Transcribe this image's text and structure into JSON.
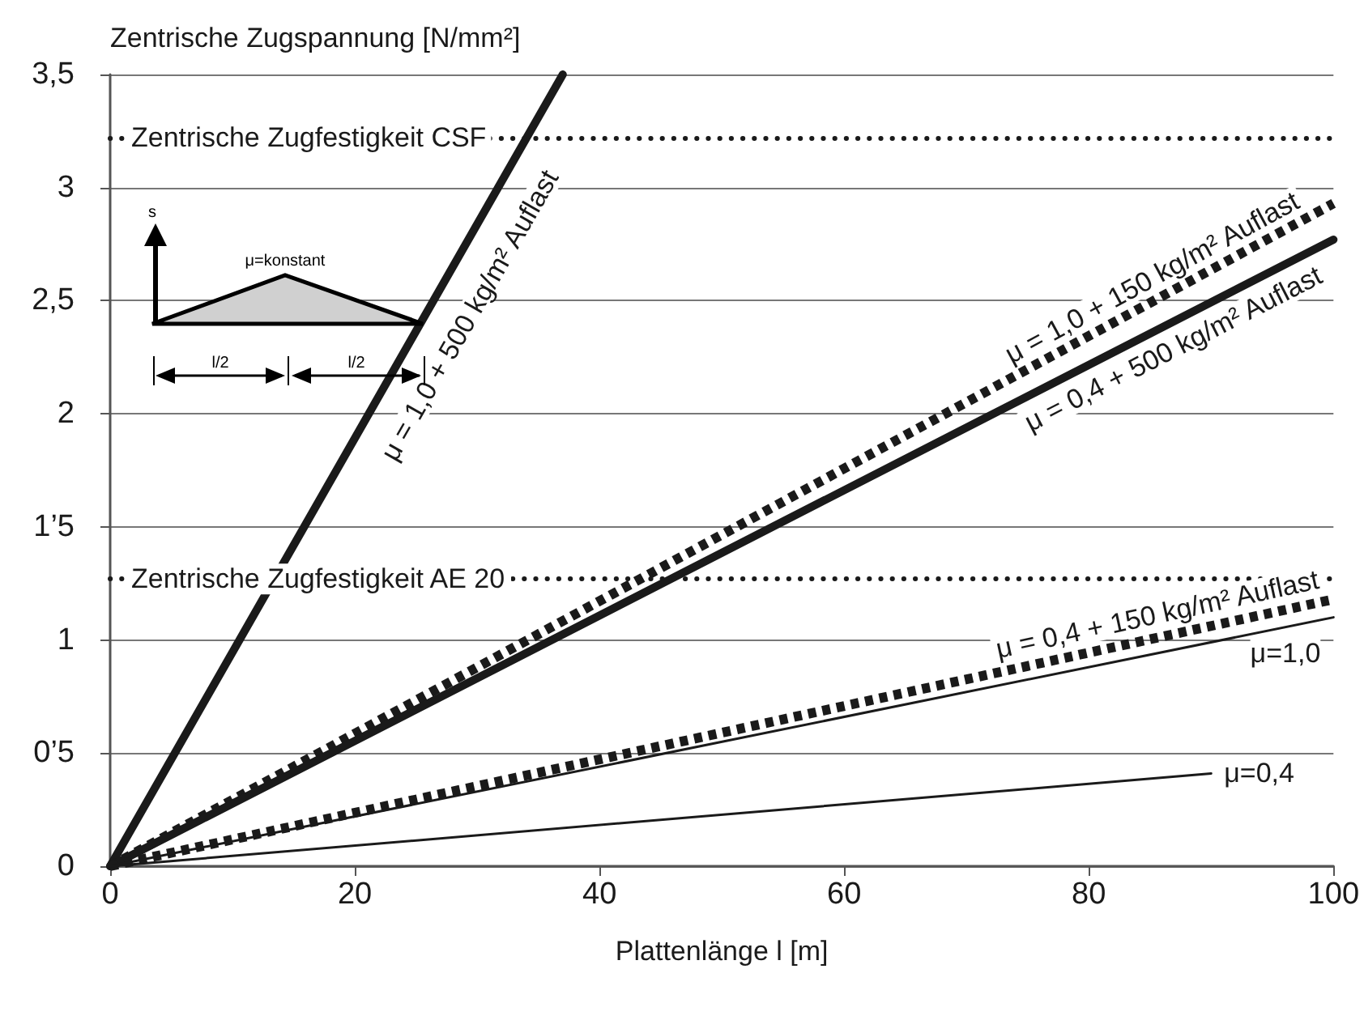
{
  "chart_data": {
    "type": "line",
    "ylabel": "Zentrische Zugspannung [N/mm²]",
    "xlabel": "Plattenlänge l [m]",
    "xlim": [
      0,
      100
    ],
    "xticks": [
      0,
      20,
      40,
      60,
      80,
      100
    ],
    "ylim": [
      0,
      3.5
    ],
    "yticks": [
      0,
      {
        "value": 0.5,
        "label": "0’5"
      },
      1,
      {
        "value": 1.5,
        "label": "1’5"
      },
      2,
      {
        "value": 2.5,
        "label": "2,5"
      },
      3,
      {
        "value": 3.5,
        "label": "3,5"
      }
    ],
    "grid": "y",
    "legend": false,
    "marker": "none",
    "series": [
      {
        "name": "μ = 1,0 + 500 kg/m² Auflast",
        "color": "#1a1a1a",
        "line_style": "solid",
        "x": [
          0,
          37
        ],
        "values": [
          0,
          3.5
        ]
      },
      {
        "name": "μ = 1,0 + 150 kg/m² Auflast",
        "color": "#1a1a1a",
        "line_style": "dotted",
        "x": [
          0,
          100
        ],
        "values": [
          0,
          2.93
        ]
      },
      {
        "name": "μ = 0,4 + 500 kg/m² Auflast",
        "color": "#1a1a1a",
        "line_style": "solid",
        "x": [
          0,
          100
        ],
        "values": [
          0,
          2.77
        ]
      },
      {
        "name": "μ = 0,4 + 150 kg/m² Auflast",
        "color": "#1a1a1a",
        "line_style": "dotted",
        "x": [
          0,
          100
        ],
        "values": [
          0,
          1.18
        ]
      },
      {
        "name": "μ=1,0",
        "color": "#1a1a1a",
        "line_style": "solid",
        "x": [
          0,
          100
        ],
        "values": [
          0,
          1.1
        ]
      },
      {
        "name": "μ=0,4",
        "color": "#1a1a1a",
        "line_style": "solid",
        "x": [
          0,
          90
        ],
        "values": [
          0,
          0.41
        ]
      }
    ],
    "ref_lines": [
      {
        "axis": "y",
        "value": 3.22,
        "label": "Zentrische Zugfestigkeit CSF",
        "color": "#1a1a1a",
        "line_style": "dotted"
      },
      {
        "axis": "y",
        "value": 1.27,
        "label": "Zentrische Zugfestigkeit AE 20",
        "color": "#1a1a1a",
        "line_style": "dotted"
      }
    ],
    "annotations": [
      "s",
      "μ=konstant",
      "l/2",
      "l/2"
    ]
  }
}
